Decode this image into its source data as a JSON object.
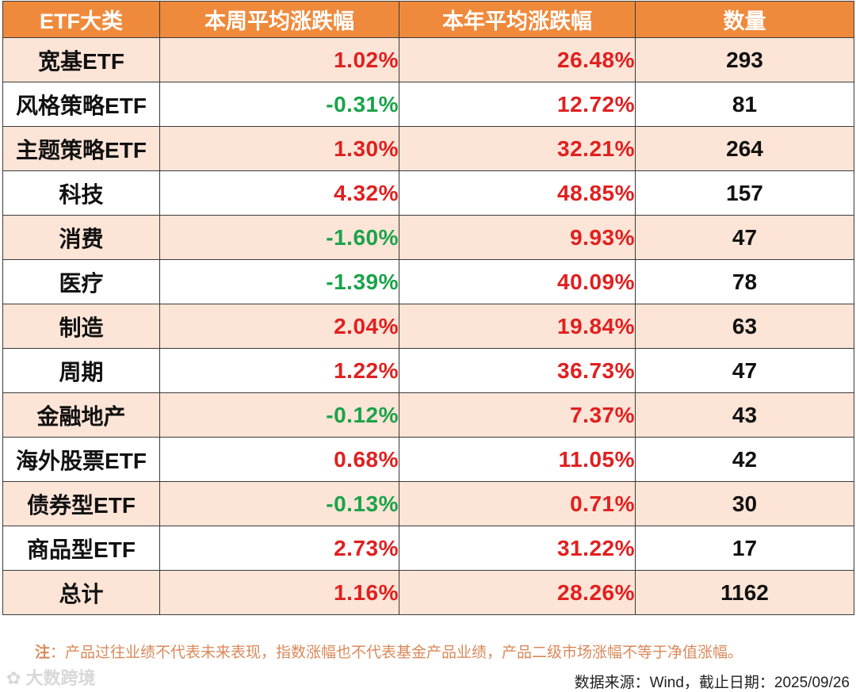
{
  "table": {
    "headers": [
      "ETF大类",
      "本周平均涨跌幅",
      "本年平均涨跌幅",
      "数量"
    ],
    "rows": [
      {
        "name": "宽基ETF",
        "week": "1.02%",
        "year": "26.48%",
        "count": "293",
        "week_dir": "up",
        "year_dir": "up"
      },
      {
        "name": "风格策略ETF",
        "week": "-0.31%",
        "year": "12.72%",
        "count": "81",
        "week_dir": "down",
        "year_dir": "up"
      },
      {
        "name": "主题策略ETF",
        "week": "1.30%",
        "year": "32.21%",
        "count": "264",
        "week_dir": "up",
        "year_dir": "up"
      },
      {
        "name": "科技",
        "week": "4.32%",
        "year": "48.85%",
        "count": "157",
        "week_dir": "up",
        "year_dir": "up"
      },
      {
        "name": "消费",
        "week": "-1.60%",
        "year": "9.93%",
        "count": "47",
        "week_dir": "down",
        "year_dir": "up"
      },
      {
        "name": "医疗",
        "week": "-1.39%",
        "year": "40.09%",
        "count": "78",
        "week_dir": "down",
        "year_dir": "up"
      },
      {
        "name": "制造",
        "week": "2.04%",
        "year": "19.84%",
        "count": "63",
        "week_dir": "up",
        "year_dir": "up"
      },
      {
        "name": "周期",
        "week": "1.22%",
        "year": "36.73%",
        "count": "47",
        "week_dir": "up",
        "year_dir": "up"
      },
      {
        "name": "金融地产",
        "week": "-0.12%",
        "year": "7.37%",
        "count": "43",
        "week_dir": "down",
        "year_dir": "up"
      },
      {
        "name": "海外股票ETF",
        "week": "0.68%",
        "year": "11.05%",
        "count": "42",
        "week_dir": "up",
        "year_dir": "up"
      },
      {
        "name": "债券型ETF",
        "week": "-0.13%",
        "year": "0.71%",
        "count": "30",
        "week_dir": "down",
        "year_dir": "up"
      },
      {
        "name": "商品型ETF",
        "week": "2.73%",
        "year": "31.22%",
        "count": "17",
        "week_dir": "up",
        "year_dir": "up"
      },
      {
        "name": "总计",
        "week": "1.16%",
        "year": "28.26%",
        "count": "1162",
        "week_dir": "up",
        "year_dir": "up"
      }
    ]
  },
  "colors": {
    "header_bg": "#ef8a3c",
    "row_alt_bg": "#fce4d6",
    "up": "#e02020",
    "down": "#1aa34a"
  },
  "footnote": {
    "label": "注",
    "text": "：产品过往业绩不代表未来表现，指数涨幅也不代表基金产品业绩，产品二级市场涨幅不等于净值涨幅。"
  },
  "watermark": "大数跨境",
  "source": "数据来源：Wind，截止日期：2025/09/26"
}
